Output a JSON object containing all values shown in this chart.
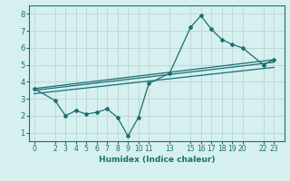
{
  "xlabel": "Humidex (Indice chaleur)",
  "bg_color": "#d6efef",
  "grid_color": "#c0d8d8",
  "line_color": "#1a7070",
  "xlim": [
    -0.5,
    24.0
  ],
  "ylim": [
    0.5,
    8.5
  ],
  "xticks": [
    0,
    2,
    3,
    4,
    5,
    6,
    7,
    8,
    9,
    10,
    11,
    13,
    15,
    16,
    17,
    18,
    19,
    20,
    22,
    23
  ],
  "yticks": [
    1,
    2,
    3,
    4,
    5,
    6,
    7,
    8
  ],
  "line1_x": [
    0,
    2,
    3,
    4,
    5,
    6,
    7,
    8,
    9,
    10,
    11,
    13,
    15,
    16,
    17,
    18,
    19,
    20,
    22,
    23
  ],
  "line1_y": [
    3.6,
    2.9,
    2.0,
    2.3,
    2.1,
    2.2,
    2.4,
    1.9,
    0.8,
    1.9,
    3.9,
    4.5,
    7.2,
    7.9,
    7.1,
    6.5,
    6.2,
    6.0,
    5.0,
    5.3
  ],
  "line2_x": [
    0,
    23
  ],
  "line2_y": [
    3.6,
    5.3
  ],
  "line3_x": [
    0,
    23
  ],
  "line3_y": [
    3.5,
    5.15
  ],
  "line4_x": [
    0,
    23
  ],
  "line4_y": [
    3.3,
    4.85
  ]
}
